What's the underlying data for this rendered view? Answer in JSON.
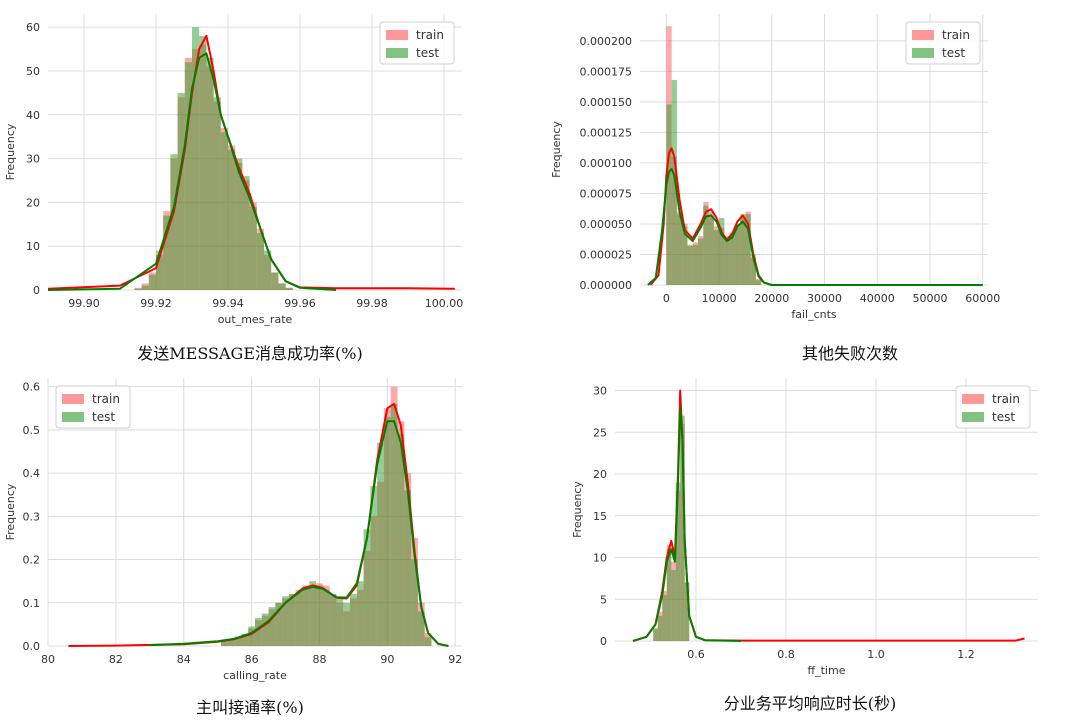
{
  "chart_data": [
    {
      "type": "histogram",
      "caption": "发送MESSAGE消息成功率(%)",
      "xlabel": "out_mes_rate",
      "ylabel": "Frequency",
      "xlim": [
        99.89,
        100.005
      ],
      "ylim": [
        0,
        63
      ],
      "xticks": [
        99.9,
        99.92,
        99.94,
        99.96,
        99.98,
        100.0
      ],
      "xtick_labels": [
        "99.90",
        "99.92",
        "99.94",
        "99.96",
        "99.98",
        "100.00"
      ],
      "yticks": [
        0,
        10,
        20,
        30,
        40,
        50,
        60
      ],
      "ytick_labels": [
        "0",
        "10",
        "20",
        "30",
        "40",
        "50",
        "60"
      ],
      "legend": {
        "position": "top-right",
        "entries": [
          "train",
          "test"
        ]
      },
      "series": [
        {
          "name": "train",
          "color": "#ff0000",
          "kde_x": [
            99.89,
            99.91,
            99.92,
            99.925,
            99.928,
            99.93,
            99.932,
            99.934,
            99.936,
            99.938,
            99.94,
            99.943,
            99.946,
            99.949,
            99.952,
            99.956,
            99.96,
            99.97,
            99.98,
            99.99,
            100.003
          ],
          "kde_y": [
            0.3,
            1,
            5,
            18,
            32,
            45,
            55,
            58,
            50,
            40,
            35,
            28,
            22,
            14,
            7,
            2,
            0.6,
            0.4,
            0.4,
            0.4,
            0.3
          ]
        },
        {
          "name": "test",
          "color": "#008000",
          "kde_x": [
            99.89,
            99.91,
            99.92,
            99.925,
            99.928,
            99.93,
            99.932,
            99.934,
            99.936,
            99.938,
            99.94,
            99.943,
            99.946,
            99.949,
            99.952,
            99.956,
            99.96,
            99.97
          ],
          "kde_y": [
            0,
            0.3,
            6,
            19,
            33,
            46,
            53,
            54,
            48,
            40,
            35,
            27,
            21,
            14,
            7,
            2,
            0.5,
            0
          ]
        }
      ],
      "bars_x": [
        99.915,
        99.917,
        99.919,
        99.921,
        99.923,
        99.925,
        99.927,
        99.929,
        99.931,
        99.933,
        99.935,
        99.937,
        99.939,
        99.941,
        99.943,
        99.945,
        99.947,
        99.949,
        99.951,
        99.953,
        99.955,
        99.957
      ],
      "bars_train": [
        0.5,
        1.5,
        4,
        9,
        18,
        30,
        44,
        53,
        55,
        56,
        51,
        43,
        37,
        33,
        29,
        25,
        20,
        14,
        8,
        4,
        1.5,
        0.5
      ],
      "bars_test": [
        0.3,
        1,
        3.5,
        8,
        17,
        31,
        45,
        52,
        60,
        58,
        53,
        44,
        36,
        32,
        30,
        26,
        19,
        13,
        9,
        4,
        1.5,
        0.5
      ]
    },
    {
      "type": "histogram",
      "caption": "其他失败次数",
      "xlabel": "fail_cnts",
      "ylabel": "Frequency",
      "xlim": [
        -5000,
        61000
      ],
      "ylim": [
        0,
        0.000222
      ],
      "xticks": [
        0,
        10000,
        20000,
        30000,
        40000,
        50000,
        60000
      ],
      "xtick_labels": [
        "0",
        "10000",
        "20000",
        "30000",
        "40000",
        "50000",
        "60000"
      ],
      "yticks": [
        0,
        2.5e-05,
        5e-05,
        7.5e-05,
        0.0001,
        0.000125,
        0.00015,
        0.000175,
        0.0002
      ],
      "ytick_labels": [
        "0.000000",
        "0.000025",
        "0.000050",
        "0.000075",
        "0.000100",
        "0.000125",
        "0.000150",
        "0.000175",
        "0.000200"
      ],
      "legend": {
        "position": "top-right",
        "entries": [
          "train",
          "test"
        ]
      },
      "series": [
        {
          "name": "train",
          "color": "#ff0000",
          "kde_x": [
            -3000,
            -1500,
            -500,
            0,
            500,
            1000,
            1500,
            2500,
            3500,
            5000,
            6500,
            7500,
            8500,
            9500,
            10500,
            11500,
            12500,
            13500,
            14500,
            15500,
            16500,
            17500,
            18500,
            20000,
            25000,
            40000,
            60000
          ],
          "kde_y": [
            0,
            8e-06,
            5e-05,
            9e-05,
            0.000108,
            0.000112,
            0.000105,
            7e-05,
            4.5e-05,
            3.8e-05,
            5e-05,
            6e-05,
            6.2e-05,
            5.5e-05,
            4.3e-05,
            3.7e-05,
            4.2e-05,
            5.2e-05,
            5.7e-05,
            5e-05,
            2.5e-05,
            8e-06,
            2e-06,
            0,
            0,
            0,
            0
          ]
        },
        {
          "name": "test",
          "color": "#008000",
          "kde_x": [
            -3500,
            -2000,
            -800,
            0,
            500,
            1000,
            1500,
            2500,
            3500,
            5000,
            6500,
            7500,
            8500,
            9500,
            10500,
            11500,
            12500,
            13500,
            14500,
            15500,
            16500,
            17500,
            18500,
            20000,
            25000,
            40000,
            60000
          ],
          "kde_y": [
            0,
            6e-06,
            4.5e-05,
            8.2e-05,
            9.3e-05,
            9.5e-05,
            9e-05,
            6e-05,
            4.2e-05,
            3.6e-05,
            4.7e-05,
            5.6e-05,
            5.7e-05,
            5.2e-05,
            4.1e-05,
            3.6e-05,
            3.9e-05,
            4.8e-05,
            5.2e-05,
            4.6e-05,
            2.2e-05,
            7e-06,
            2e-06,
            0,
            0,
            0,
            0
          ]
        }
      ],
      "bars_x": [
        500,
        1500,
        2500,
        3500,
        4500,
        5500,
        6500,
        7500,
        8500,
        9500,
        10500,
        11500,
        12500,
        13500,
        14500,
        15500,
        16500,
        17500
      ],
      "bars_train": [
        0.000212,
        0.000105,
        6e-05,
        5e-05,
        3.3e-05,
        3.5e-05,
        4e-05,
        6.8e-05,
        6e-05,
        4.8e-05,
        4.7e-05,
        4e-05,
        4e-05,
        4.8e-05,
        5.5e-05,
        6e-05,
        2.5e-05,
        5e-06
      ],
      "bars_test": [
        0.000148,
        0.000168,
        5.8e-05,
        4.8e-05,
        3.2e-05,
        3.3e-05,
        3.8e-05,
        6.5e-05,
        5.6e-05,
        4.5e-05,
        5.5e-05,
        3.8e-05,
        4.3e-05,
        5e-05,
        5.8e-05,
        5.8e-05,
        2.2e-05,
        4e-06
      ]
    },
    {
      "type": "histogram",
      "caption": "主叫接通率(%)",
      "xlabel": "calling_rate",
      "ylabel": "Frequency",
      "xlim": [
        80,
        92.2
      ],
      "ylim": [
        0,
        0.62
      ],
      "xticks": [
        80,
        82,
        84,
        86,
        88,
        90,
        92
      ],
      "xtick_labels": [
        "80",
        "82",
        "84",
        "86",
        "88",
        "90",
        "92"
      ],
      "yticks": [
        0,
        0.1,
        0.2,
        0.3,
        0.4,
        0.5,
        0.6
      ],
      "ytick_labels": [
        "0.0",
        "0.1",
        "0.2",
        "0.3",
        "0.4",
        "0.5",
        "0.6"
      ],
      "legend": {
        "position": "top-left",
        "entries": [
          "train",
          "test"
        ]
      },
      "series": [
        {
          "name": "train",
          "color": "#ff0000",
          "kde_x": [
            80.6,
            82,
            84,
            85,
            85.5,
            86,
            86.5,
            87,
            87.5,
            87.8,
            88.1,
            88.5,
            88.8,
            89.1,
            89.4,
            89.7,
            90,
            90.2,
            90.4,
            90.6,
            90.8,
            91,
            91.2,
            91.5,
            91.8
          ],
          "kde_y": [
            0,
            0.001,
            0.004,
            0.01,
            0.016,
            0.028,
            0.055,
            0.1,
            0.133,
            0.14,
            0.134,
            0.112,
            0.11,
            0.14,
            0.25,
            0.43,
            0.55,
            0.56,
            0.51,
            0.38,
            0.22,
            0.09,
            0.03,
            0.005,
            0
          ]
        },
        {
          "name": "test",
          "color": "#008000",
          "kde_x": [
            83,
            84,
            85,
            85.5,
            86,
            86.5,
            87,
            87.5,
            87.8,
            88.1,
            88.5,
            88.8,
            89.1,
            89.4,
            89.7,
            90,
            90.2,
            90.4,
            90.6,
            90.8,
            91,
            91.2,
            91.5,
            91.8
          ],
          "kde_y": [
            0.002,
            0.005,
            0.011,
            0.017,
            0.03,
            0.058,
            0.1,
            0.13,
            0.137,
            0.132,
            0.113,
            0.112,
            0.145,
            0.25,
            0.42,
            0.52,
            0.52,
            0.47,
            0.36,
            0.21,
            0.09,
            0.03,
            0.005,
            0
          ]
        }
      ],
      "bars_x": [
        85.2,
        85.4,
        85.6,
        85.8,
        86,
        86.2,
        86.4,
        86.6,
        86.8,
        87,
        87.2,
        87.4,
        87.6,
        87.8,
        88,
        88.2,
        88.4,
        88.6,
        88.8,
        89,
        89.2,
        89.4,
        89.6,
        89.8,
        90,
        90.2,
        90.4,
        90.6,
        90.8,
        91,
        91.2
      ],
      "bars_train": [
        0.01,
        0.015,
        0.02,
        0.025,
        0.04,
        0.06,
        0.07,
        0.085,
        0.1,
        0.11,
        0.12,
        0.13,
        0.14,
        0.14,
        0.145,
        0.14,
        0.12,
        0.1,
        0.08,
        0.11,
        0.13,
        0.22,
        0.3,
        0.38,
        0.55,
        0.6,
        0.52,
        0.4,
        0.25,
        0.1,
        0.03
      ],
      "bars_test": [
        0.012,
        0.017,
        0.022,
        0.028,
        0.045,
        0.065,
        0.075,
        0.09,
        0.1,
        0.115,
        0.12,
        0.125,
        0.135,
        0.15,
        0.14,
        0.13,
        0.12,
        0.11,
        0.1,
        0.12,
        0.15,
        0.27,
        0.37,
        0.47,
        0.53,
        0.56,
        0.49,
        0.36,
        0.2,
        0.08,
        0.02
      ]
    },
    {
      "type": "histogram",
      "caption": "分业务平均响应时长(秒)",
      "xlabel": "ff_time",
      "ylabel": "Frequency",
      "xlim": [
        0.42,
        1.36
      ],
      "ylim": [
        0,
        31.5
      ],
      "xticks": [
        0.6,
        0.8,
        1.0,
        1.2
      ],
      "xtick_labels": [
        "0.6",
        "0.8",
        "1.0",
        "1.2"
      ],
      "yticks": [
        0,
        5,
        10,
        15,
        20,
        25,
        30
      ],
      "ytick_labels": [
        "0",
        "5",
        "10",
        "15",
        "20",
        "25",
        "30"
      ],
      "legend": {
        "position": "top-right",
        "entries": [
          "train",
          "test"
        ]
      },
      "series": [
        {
          "name": "train",
          "color": "#ff0000",
          "kde_x": [
            0.46,
            0.49,
            0.51,
            0.525,
            0.535,
            0.545,
            0.553,
            0.56,
            0.565,
            0.57,
            0.575,
            0.585,
            0.6,
            0.62,
            0.7,
            1.0,
            1.31,
            1.33
          ],
          "kde_y": [
            0,
            0.5,
            2,
            6,
            10,
            12,
            10,
            20,
            30,
            24,
            12,
            3,
            0.5,
            0.1,
            0.05,
            0.05,
            0.05,
            0.3
          ]
        },
        {
          "name": "test",
          "color": "#008000",
          "kde_x": [
            0.46,
            0.49,
            0.51,
            0.525,
            0.535,
            0.545,
            0.553,
            0.56,
            0.565,
            0.57,
            0.575,
            0.585,
            0.6,
            0.62,
            0.7
          ],
          "kde_y": [
            0,
            0.5,
            2,
            5.5,
            9.5,
            11,
            9.5,
            19,
            28,
            24,
            12,
            3,
            0.5,
            0.1,
            0
          ]
        }
      ],
      "bars_x": [
        0.51,
        0.52,
        0.53,
        0.54,
        0.55,
        0.56,
        0.57,
        0.58
      ],
      "bars_train": [
        1.5,
        3.5,
        6,
        11.5,
        9.5,
        18,
        26,
        7
      ],
      "bars_test": [
        1.5,
        3,
        5.5,
        11,
        8.5,
        19,
        27,
        7
      ]
    }
  ]
}
